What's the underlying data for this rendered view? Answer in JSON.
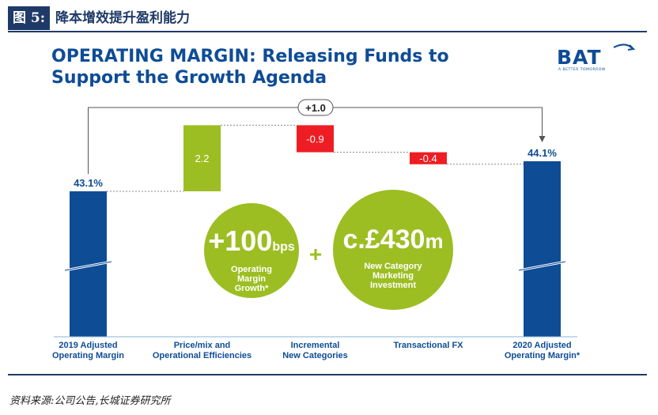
{
  "figure": {
    "label": "图 5:",
    "title": "降本增效提升盈利能力"
  },
  "slide": {
    "title_line1": "OPERATING MARGIN: Releasing Funds to",
    "title_line2": "Support the Growth Agenda"
  },
  "logo": {
    "text": "BAT",
    "tagline": "A BETTER TOMORROW",
    "color": "#0e4c96"
  },
  "chart_data": {
    "type": "bar",
    "subtype": "waterfall",
    "categories_line1": [
      "2019 Adjusted",
      "Price/mix and",
      "Incremental",
      "Transactional FX",
      "2020 Adjusted"
    ],
    "categories_line2": [
      "Operating Margin",
      "Operational Efficiencies",
      "New Categories",
      "",
      "Operating Margin*"
    ],
    "start_value": 43.1,
    "start_label": "43.1%",
    "changes": [
      2.2,
      -0.9,
      -0.4
    ],
    "change_labels": [
      "2.2",
      "-0.9",
      "-0.4"
    ],
    "end_value": 44.1,
    "end_label": "44.1%",
    "net_change_label": "+1.0",
    "axis_break": true,
    "colors": {
      "total": "#0e4c96",
      "increase": "#9cbe22",
      "decrease": "#ee1d23",
      "connector": "#888888"
    }
  },
  "callouts": [
    {
      "big": "+100",
      "unit": "bps",
      "line1": "Operating",
      "line2": "Margin",
      "line3": "Growth*"
    },
    {
      "big": "c.£430",
      "unit": "m",
      "line1": "New Category",
      "line2": "Marketing",
      "line3": "Investment"
    }
  ],
  "callout_join": "+",
  "callout_color": "#9cbe22",
  "source": "资料来源:公司公告,长城证券研究所"
}
